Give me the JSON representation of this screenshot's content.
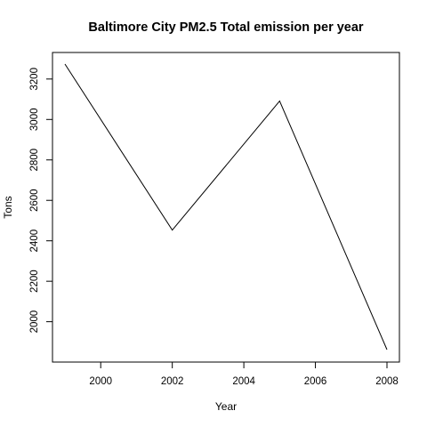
{
  "chart_data": {
    "type": "line",
    "title": "Baltimore City PM2.5 Total emission per year",
    "xlabel": "Year",
    "ylabel": "Tons",
    "x": [
      1999,
      2002,
      2005,
      2008
    ],
    "series": [
      {
        "values": [
          3274,
          2453,
          3091,
          1862
        ]
      }
    ],
    "xlim": [
      1999,
      2008
    ],
    "ylim": [
      1862,
      3274
    ],
    "xticks": [
      2000,
      2002,
      2004,
      2006,
      2008
    ],
    "yticks": [
      2000,
      2200,
      2400,
      2600,
      2800,
      3000,
      3200
    ],
    "grid": false,
    "line_color": "#000000"
  }
}
